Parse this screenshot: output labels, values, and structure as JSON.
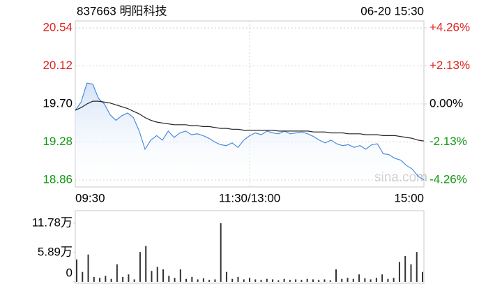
{
  "chart_data": [
    {
      "type": "line",
      "title": "837663 明阳科技",
      "subtitle": "06-20 15:30",
      "annotation": "sina.com",
      "x": [
        0,
        4,
        8,
        12,
        16,
        20,
        24,
        28,
        32,
        36,
        40,
        44,
        48,
        52,
        56,
        60,
        64,
        68,
        72,
        76,
        80,
        84,
        88,
        92,
        96,
        100,
        104,
        108,
        112,
        116,
        120,
        124,
        128,
        132,
        136,
        140,
        144,
        148,
        152,
        156,
        160,
        164,
        168,
        172,
        176,
        180,
        184,
        188,
        192,
        196,
        200,
        204,
        208,
        212,
        216,
        220,
        224,
        228,
        232,
        236,
        240
      ],
      "xlim": [
        0,
        240
      ],
      "xticks": [
        {
          "value": 0,
          "label": "09:30"
        },
        {
          "value": 120,
          "label": "11:30/13:00"
        },
        {
          "value": 240,
          "label": "15:00"
        }
      ],
      "ylim": [
        18.86,
        20.54
      ],
      "yticks": [
        20.54,
        20.12,
        {
          "value": 19.7,
          "label": "19.70"
        },
        19.28,
        18.86
      ],
      "y2lim": [
        -4.26,
        4.26
      ],
      "y2ticks": [
        {
          "value": 4.26,
          "label": "+4.26%"
        },
        {
          "value": 2.13,
          "label": "+2.13%"
        },
        {
          "value": 0,
          "label": "0.00%"
        },
        {
          "value": -2.13,
          "label": "-2.13%"
        },
        {
          "value": -4.26,
          "label": "-4.26%"
        }
      ],
      "up_color": "#e0241f",
      "down_color": "#119911",
      "flat_color": "#000000",
      "series": [
        {
          "color": "#4a8be0",
          "values": [
            19.63,
            19.72,
            19.93,
            19.92,
            19.76,
            19.7,
            19.58,
            19.52,
            19.57,
            19.6,
            19.55,
            19.4,
            19.2,
            19.3,
            19.35,
            19.3,
            19.4,
            19.33,
            19.38,
            19.4,
            19.36,
            19.37,
            19.35,
            19.32,
            19.28,
            19.25,
            19.24,
            19.27,
            19.22,
            19.3,
            19.35,
            19.38,
            19.36,
            19.4,
            19.38,
            19.37,
            19.4,
            19.37,
            19.38,
            19.39,
            19.37,
            19.34,
            19.3,
            19.27,
            19.3,
            19.26,
            19.24,
            19.25,
            19.22,
            19.24,
            19.2,
            19.25,
            19.26,
            19.15,
            19.14,
            19.1,
            19.08,
            19.02,
            18.98,
            18.9,
            18.86
          ]
        },
        {
          "color": "#222222",
          "values": [
            19.63,
            19.66,
            19.7,
            19.73,
            19.73,
            19.72,
            19.71,
            19.69,
            19.67,
            19.65,
            19.62,
            19.59,
            19.55,
            19.52,
            19.5,
            19.49,
            19.48,
            19.47,
            19.47,
            19.47,
            19.46,
            19.46,
            19.45,
            19.45,
            19.44,
            19.43,
            19.43,
            19.42,
            19.42,
            19.41,
            19.41,
            19.41,
            19.41,
            19.41,
            19.41,
            19.4,
            19.4,
            19.4,
            19.4,
            19.4,
            19.4,
            19.39,
            19.39,
            19.39,
            19.38,
            19.38,
            19.38,
            19.37,
            19.37,
            19.37,
            19.36,
            19.36,
            19.36,
            19.35,
            19.35,
            19.35,
            19.34,
            19.33,
            19.32,
            19.3,
            19.29
          ]
        }
      ]
    },
    {
      "type": "bar",
      "x": [
        0,
        4,
        8,
        12,
        16,
        20,
        24,
        28,
        32,
        36,
        40,
        44,
        48,
        52,
        56,
        60,
        64,
        68,
        72,
        76,
        80,
        84,
        88,
        92,
        96,
        100,
        104,
        108,
        112,
        116,
        120,
        124,
        128,
        132,
        136,
        140,
        144,
        148,
        152,
        156,
        160,
        164,
        168,
        172,
        176,
        180,
        184,
        188,
        192,
        196,
        200,
        204,
        208,
        212,
        216,
        220,
        224,
        228,
        232,
        236,
        240
      ],
      "xlim": [
        0,
        240
      ],
      "ylim": [
        0,
        11.78
      ],
      "yticks": [
        {
          "value": 11.78,
          "label": "11.78万"
        },
        {
          "value": 5.89,
          "label": "5.89万"
        },
        0
      ],
      "color": "#333333",
      "values": [
        4.5,
        2.0,
        5.5,
        1.0,
        0.8,
        1.2,
        0.6,
        3.5,
        1.0,
        1.5,
        0.5,
        6.0,
        7.2,
        2.2,
        3.0,
        2.5,
        1.2,
        0.8,
        2.5,
        0.6,
        1.0,
        0.5,
        0.7,
        0.4,
        0.5,
        11.78,
        2.0,
        0.6,
        1.0,
        0.5,
        0.8,
        0.5,
        0.4,
        0.6,
        0.5,
        0.3,
        0.6,
        0.4,
        0.5,
        0.4,
        0.6,
        0.5,
        0.4,
        0.5,
        0.3,
        2.5,
        0.6,
        0.8,
        0.6,
        1.5,
        0.7,
        0.5,
        0.8,
        1.5,
        0.6,
        0.8,
        4.0,
        5.2,
        3.5,
        6.0,
        2.0
      ]
    }
  ]
}
